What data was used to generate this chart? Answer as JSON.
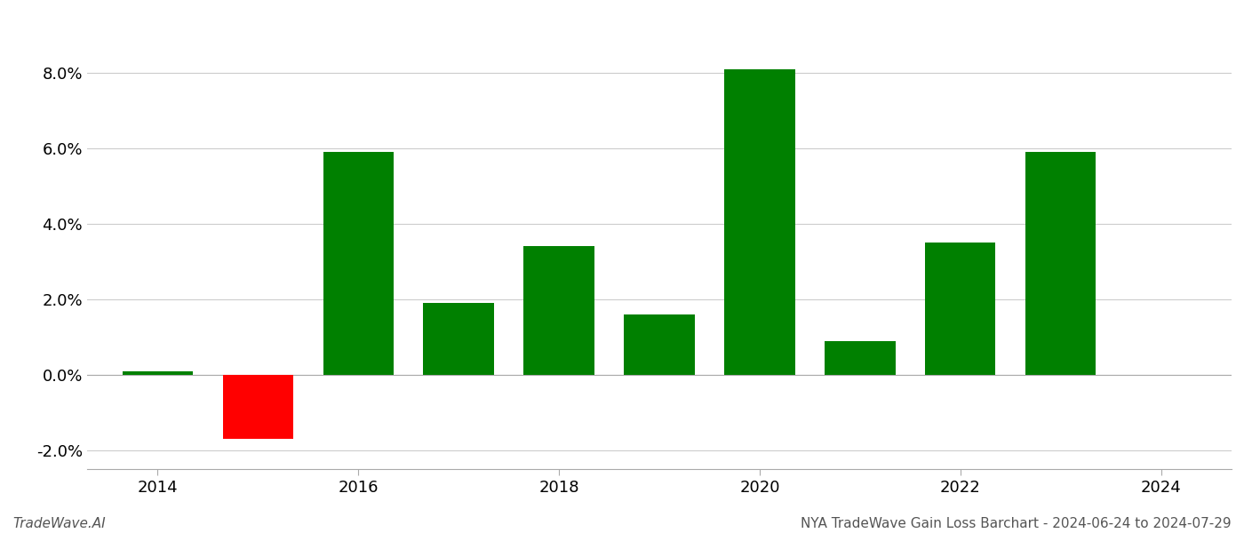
{
  "years": [
    2014,
    2015,
    2016,
    2017,
    2018,
    2019,
    2020,
    2021,
    2022,
    2023
  ],
  "values": [
    0.001,
    -0.017,
    0.059,
    0.019,
    0.034,
    0.016,
    0.081,
    0.009,
    0.035,
    0.059
  ],
  "colors": [
    "#008000",
    "#ff0000",
    "#008000",
    "#008000",
    "#008000",
    "#008000",
    "#008000",
    "#008000",
    "#008000",
    "#008000"
  ],
  "title": "NYA TradeWave Gain Loss Barchart - 2024-06-24 to 2024-07-29",
  "footer_left": "TradeWave.AI",
  "ylim": [
    -0.025,
    0.095
  ],
  "yticks": [
    -0.02,
    0.0,
    0.02,
    0.04,
    0.06,
    0.08
  ],
  "xlim_left": 2013.3,
  "xlim_right": 2024.7,
  "xticks": [
    2014,
    2016,
    2018,
    2020,
    2022,
    2024
  ],
  "background_color": "#ffffff",
  "grid_color": "#cccccc",
  "bar_width": 0.7,
  "footer_fontsize": 11,
  "tick_fontsize": 13
}
